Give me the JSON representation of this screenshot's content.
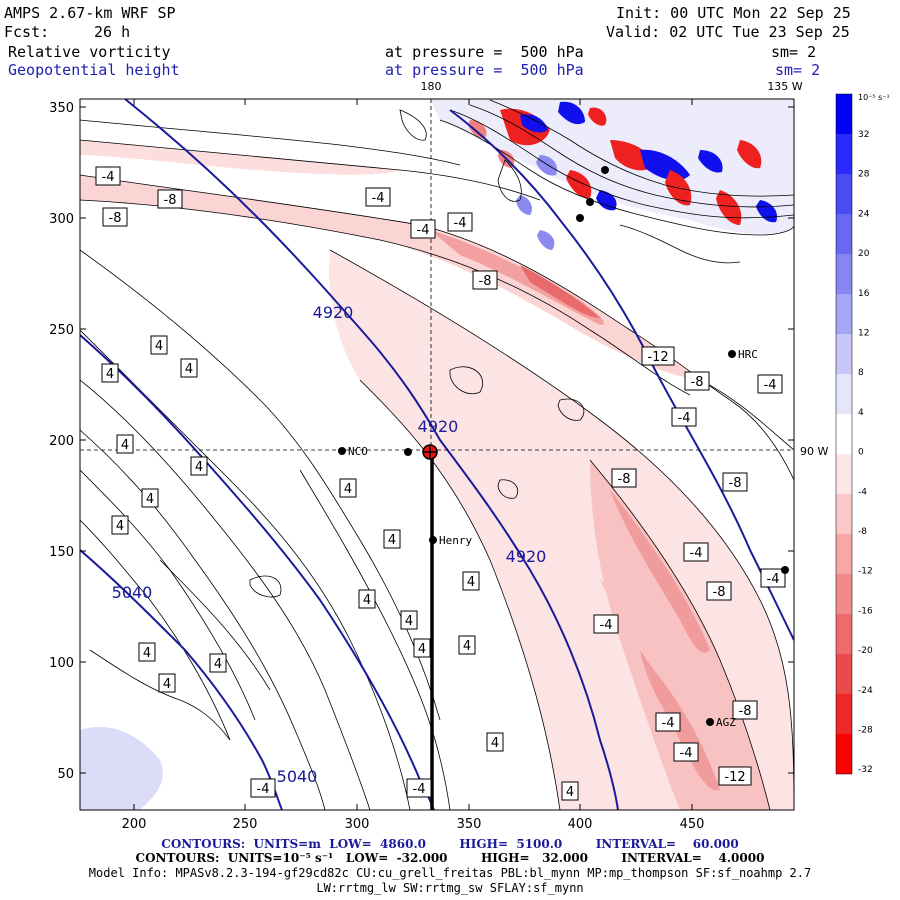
{
  "header": {
    "model": "AMPS 2.67-km WRF SP",
    "init": "Init: 00 UTC Mon 22 Sep 25",
    "fcst_label": "Fcst:",
    "fcst_value": "26 h",
    "valid": "Valid: 02 UTC Tue 23 Sep 25",
    "field1": "Relative vorticity",
    "field1_level": "at pressure =  500 hPa",
    "field1_sm": "sm= 2",
    "field2": "Geopotential height",
    "field2_level": "at pressure =  500 hPa",
    "field2_sm": "sm= 2"
  },
  "map": {
    "x_ticks": [
      "200",
      "250",
      "300",
      "350",
      "400",
      "450"
    ],
    "y_ticks": [
      "350",
      "300",
      "250",
      "200",
      "150",
      "100",
      "50"
    ],
    "lon_labels": [
      "180",
      "135 W",
      "90 W"
    ],
    "stations": [
      "NCO",
      "Henry",
      "HRC",
      "AGZ"
    ],
    "vort_labels": [
      "-4",
      "-8",
      "-4",
      "-8",
      "-4",
      "-4",
      "-8",
      "-12",
      "-8",
      "-4",
      "-4",
      "-8",
      "-4",
      "-4",
      "-8",
      "-8",
      "-4",
      "-8",
      "-12",
      "-4",
      "-4",
      "-4",
      "-4",
      "4",
      "4",
      "4",
      "4",
      "4",
      "4",
      "4",
      "4",
      "4",
      "4",
      "4",
      "4",
      "4",
      "4",
      "4",
      "4",
      "4",
      "4",
      "4"
    ],
    "height_labels": [
      "4920",
      "4920",
      "4920",
      "5040",
      "5040"
    ]
  },
  "colorbar": {
    "unit": "10⁻⁵ s⁻¹",
    "labels": [
      "32",
      "28",
      "24",
      "20",
      "16",
      "12",
      "8",
      "4",
      "0",
      "-4",
      "-8",
      "-12",
      "-16",
      "-20",
      "-24",
      "-28",
      "-32"
    ],
    "colors": [
      "#0000ff",
      "#2a2aff",
      "#4b4bf2",
      "#6868f0",
      "#8686f0",
      "#a6a6f4",
      "#c8c8f8",
      "#e6e6fb",
      "#ffffff",
      "#fde6e6",
      "#fac8c8",
      "#f6a8a8",
      "#f28a8a",
      "#ef6a6a",
      "#ec4a4a",
      "#ee2828",
      "#ff0000"
    ]
  },
  "footer": {
    "line1": "CONTOURS:  UNITS=m  LOW=  4860.0        HIGH=  5100.0        INTERVAL=    60.000",
    "line2": "CONTOURS:  UNITS=10⁻⁵ s⁻¹   LOW=  -32.000        HIGH=   32.000        INTERVAL=    4.0000",
    "line3": "Model Info: MPASv8.2.3-194-gf29cd82c CU:cu_grell_freitas PBL:bl_mynn MP:mp_thompson SF:sf_noahmp 2.7",
    "line4": "LW:rrtmg_lw SW:rrtmg_sw SFLAY:sf_mynn"
  }
}
